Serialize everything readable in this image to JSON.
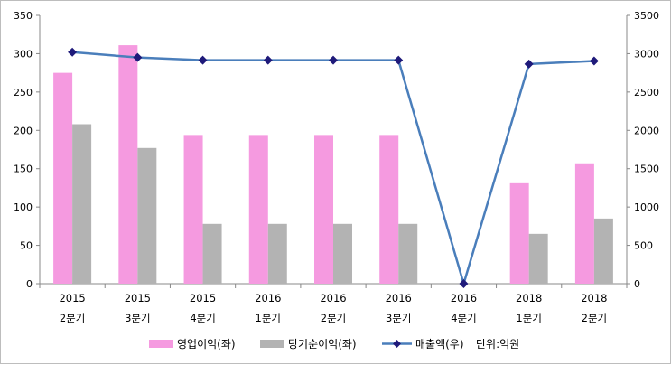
{
  "chart_data": {
    "type": "bar",
    "categories": [
      [
        "2015",
        "2분기"
      ],
      [
        "2015",
        "3분기"
      ],
      [
        "2015",
        "4분기"
      ],
      [
        "2016",
        "1분기"
      ],
      [
        "2016",
        "2분기"
      ],
      [
        "2016",
        "3분기"
      ],
      [
        "2016",
        "4분기"
      ],
      [
        "2018",
        "1분기"
      ],
      [
        "2018",
        "2분기"
      ]
    ],
    "series": [
      {
        "name": "영업이익(좌)",
        "type": "bar",
        "axis": "left",
        "color": "#f59ae0",
        "values": [
          275,
          311,
          194,
          194,
          194,
          194,
          0,
          131,
          157
        ]
      },
      {
        "name": "당기순이익(좌)",
        "type": "bar",
        "axis": "left",
        "color": "#b3b3b3",
        "values": [
          208,
          177,
          78,
          78,
          78,
          78,
          0,
          65,
          85
        ]
      },
      {
        "name": "매출액(우)",
        "type": "line",
        "axis": "right",
        "color": "#4a7ebb",
        "marker_color": "#1f1a7a",
        "values": [
          3020,
          2950,
          2915,
          2915,
          2915,
          2915,
          0,
          2865,
          2905
        ]
      }
    ],
    "unit_note": "단위:억원",
    "y_left": {
      "range": [
        0,
        350
      ],
      "ticks": [
        0,
        50,
        100,
        150,
        200,
        250,
        300,
        350
      ]
    },
    "y_right": {
      "range": [
        0,
        3500
      ],
      "ticks": [
        0,
        500,
        1000,
        1500,
        2000,
        2500,
        3000,
        3500
      ]
    },
    "grid": false,
    "legend_position": "bottom"
  }
}
